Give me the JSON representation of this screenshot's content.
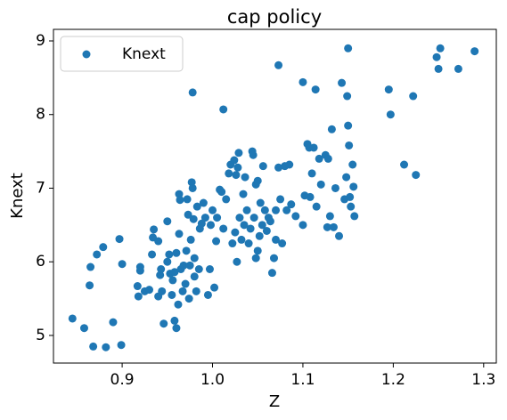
{
  "chart_data": {
    "type": "scatter",
    "title": "cap policy",
    "xlabel": "Z",
    "ylabel": "Knext",
    "legend": "upper left",
    "series": [
      {
        "name": "Knext",
        "color": "#1f77b4",
        "x": [
          0.845,
          0.858,
          0.868,
          0.882,
          0.899,
          0.89,
          0.864,
          0.865,
          0.872,
          0.879,
          0.897,
          0.9,
          0.917,
          0.918,
          0.92,
          0.92,
          0.925,
          0.93,
          0.933,
          0.934,
          0.935,
          0.94,
          0.94,
          0.942,
          0.943,
          0.944,
          0.946,
          0.95,
          0.95,
          0.952,
          0.953,
          0.955,
          0.956,
          0.958,
          0.958,
          0.96,
          0.96,
          0.962,
          0.963,
          0.963,
          0.964,
          0.965,
          0.967,
          0.968,
          0.97,
          0.971,
          0.972,
          0.973,
          0.974,
          0.975,
          0.976,
          0.977,
          0.978,
          0.978,
          0.979,
          0.98,
          0.98,
          0.982,
          0.983,
          0.985,
          0.986,
          0.988,
          0.99,
          0.992,
          0.995,
          0.997,
          0.998,
          1.0,
          1.002,
          1.004,
          1.005,
          1.008,
          1.01,
          1.012,
          1.012,
          1.015,
          1.018,
          1.02,
          1.022,
          1.024,
          1.025,
          1.026,
          1.027,
          1.028,
          1.029,
          1.03,
          1.032,
          1.034,
          1.035,
          1.036,
          1.038,
          1.04,
          1.042,
          1.044,
          1.045,
          1.046,
          1.048,
          1.048,
          1.05,
          1.05,
          1.052,
          1.053,
          1.055,
          1.056,
          1.058,
          1.06,
          1.062,
          1.064,
          1.066,
          1.068,
          1.07,
          1.07,
          1.073,
          1.073,
          1.075,
          1.077,
          1.08,
          1.082,
          1.085,
          1.087,
          1.092,
          1.1,
          1.1,
          1.102,
          1.105,
          1.107,
          1.108,
          1.11,
          1.112,
          1.114,
          1.115,
          1.118,
          1.12,
          1.125,
          1.127,
          1.128,
          1.13,
          1.132,
          1.134,
          1.136,
          1.14,
          1.143,
          1.146,
          1.148,
          1.149,
          1.15,
          1.15,
          1.151,
          1.152,
          1.153,
          1.155,
          1.156,
          1.157,
          1.195,
          1.197,
          1.212,
          1.222,
          1.225,
          1.248,
          1.25,
          1.252,
          1.272,
          1.29
        ],
        "values": [
          5.23,
          5.1,
          4.85,
          4.84,
          4.87,
          5.18,
          5.68,
          5.93,
          6.1,
          6.2,
          6.31,
          5.97,
          5.67,
          5.53,
          5.88,
          5.93,
          5.6,
          5.62,
          6.1,
          6.33,
          6.44,
          6.28,
          5.53,
          5.82,
          5.9,
          5.6,
          5.16,
          6.0,
          6.55,
          6.1,
          5.84,
          5.55,
          5.75,
          5.86,
          5.2,
          5.1,
          6.12,
          5.42,
          6.38,
          6.92,
          6.84,
          5.9,
          5.6,
          5.95,
          5.7,
          6.15,
          6.85,
          6.64,
          5.5,
          5.95,
          6.3,
          7.08,
          8.3,
          7.0,
          6.58,
          5.8,
          6.05,
          5.6,
          6.75,
          5.9,
          6.45,
          6.52,
          6.8,
          6.6,
          5.55,
          5.9,
          6.5,
          6.7,
          5.65,
          6.28,
          6.6,
          6.98,
          6.95,
          8.07,
          6.45,
          6.85,
          7.2,
          7.32,
          6.25,
          7.38,
          6.4,
          7.18,
          6.0,
          7.28,
          7.48,
          6.6,
          6.3,
          6.92,
          6.5,
          7.15,
          6.7,
          6.25,
          6.45,
          7.5,
          7.45,
          6.6,
          6.05,
          7.05,
          7.1,
          6.15,
          6.35,
          6.8,
          6.5,
          7.3,
          6.7,
          6.42,
          6.6,
          6.55,
          5.85,
          6.05,
          6.3,
          6.7,
          8.67,
          7.28,
          6.85,
          6.25,
          7.3,
          6.7,
          7.32,
          6.78,
          6.62,
          8.44,
          6.5,
          6.9,
          7.6,
          7.55,
          6.88,
          7.2,
          7.55,
          8.34,
          6.75,
          7.4,
          7.05,
          7.45,
          6.47,
          7.4,
          6.62,
          7.8,
          6.47,
          7.0,
          6.35,
          8.43,
          6.85,
          7.15,
          8.25,
          8.9,
          7.85,
          7.58,
          6.88,
          6.75,
          7.32,
          7.02,
          6.62,
          8.34,
          8.0,
          7.32,
          8.25,
          7.18,
          8.78,
          8.62,
          8.9,
          8.62,
          8.86
        ]
      }
    ],
    "xlim": [
      0.824,
      1.314
    ],
    "ylim": [
      4.625,
      9.157
    ],
    "xticks": [
      0.9,
      {
        "value": 1,
        "label": "1.0"
      },
      1.1,
      1.2,
      1.3
    ],
    "yticks": [
      5,
      6,
      7,
      8,
      9
    ]
  }
}
